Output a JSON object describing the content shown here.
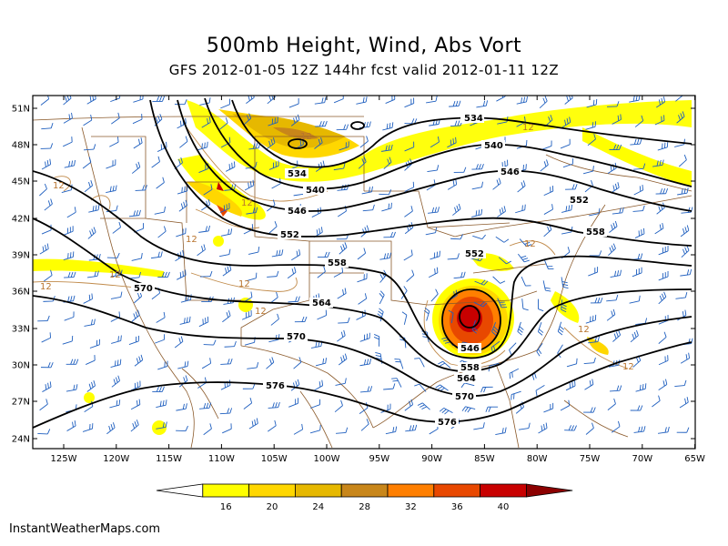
{
  "title": "500mb Height, Wind, Abs Vort",
  "subtitle": "GFS 2012-01-05 12Z 144hr fcst valid 2012-01-11 12Z",
  "footer": "InstantWeatherMaps.com",
  "lat_labels": [
    "51N",
    "48N",
    "45N",
    "42N",
    "39N",
    "36N",
    "33N",
    "30N",
    "27N",
    "24N"
  ],
  "lon_labels": [
    "125W",
    "120W",
    "115W",
    "110W",
    "105W",
    "100W",
    "95W",
    "90W",
    "85W",
    "80W",
    "75W",
    "70W",
    "65W"
  ],
  "height_contours": [
    {
      "value": "534",
      "label": "534"
    },
    {
      "value": "540",
      "label": "540"
    },
    {
      "value": "546",
      "label": "546"
    },
    {
      "value": "552",
      "label": "552"
    },
    {
      "value": "558",
      "label": "558"
    },
    {
      "value": "564",
      "label": "564"
    },
    {
      "value": "570",
      "label": "570"
    },
    {
      "value": "576",
      "label": "576"
    }
  ],
  "vort_label": "12",
  "colorbar": {
    "colors": [
      "#ffffff",
      "#ffff00",
      "#ffd700",
      "#e6b800",
      "#c8861a",
      "#ff7f00",
      "#e84800",
      "#c80000",
      "#8c0000"
    ],
    "labels": [
      "16",
      "20",
      "24",
      "28",
      "32",
      "36",
      "40"
    ]
  },
  "colors": {
    "contour": "#000000",
    "wind": "#1f5fbf",
    "geo": "#8b5a2b",
    "vort12": "#c08a4a"
  }
}
